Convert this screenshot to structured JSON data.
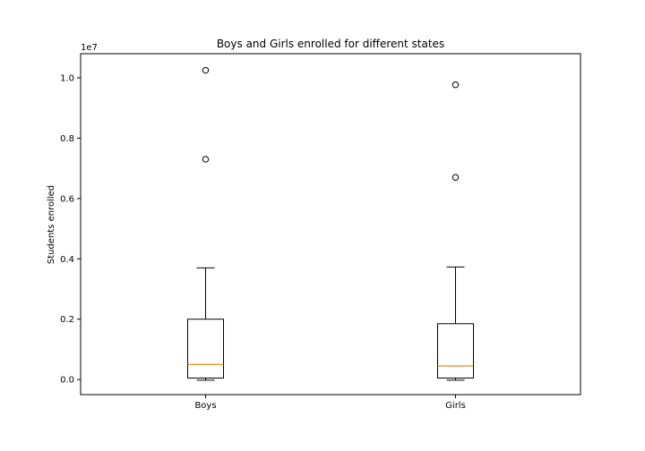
{
  "chart_data": {
    "type": "box",
    "title": "Boys and Girls enrolled for different states",
    "xlabel": "",
    "ylabel": "Students enrolled",
    "offset_label": "1e7",
    "ylim": [
      -0.05,
      1.08
    ],
    "yticks": [
      0.0,
      0.2,
      0.4,
      0.6,
      0.8,
      1.0
    ],
    "ytick_labels": [
      "0.0",
      "0.2",
      "0.4",
      "0.6",
      "0.8",
      "1.0"
    ],
    "categories": [
      "Boys",
      "Girls"
    ],
    "grid": false,
    "median_color": "#e08a1e",
    "series": [
      {
        "category": "Boys",
        "whisker_low": -0.002,
        "q1": 0.005,
        "median": 0.05,
        "q3": 0.2,
        "whisker_high": 0.37,
        "outliers": [
          1.025,
          0.73
        ]
      },
      {
        "category": "Girls",
        "whisker_low": -0.002,
        "q1": 0.005,
        "median": 0.045,
        "q3": 0.185,
        "whisker_high": 0.373,
        "outliers": [
          0.977,
          0.67
        ]
      }
    ]
  }
}
